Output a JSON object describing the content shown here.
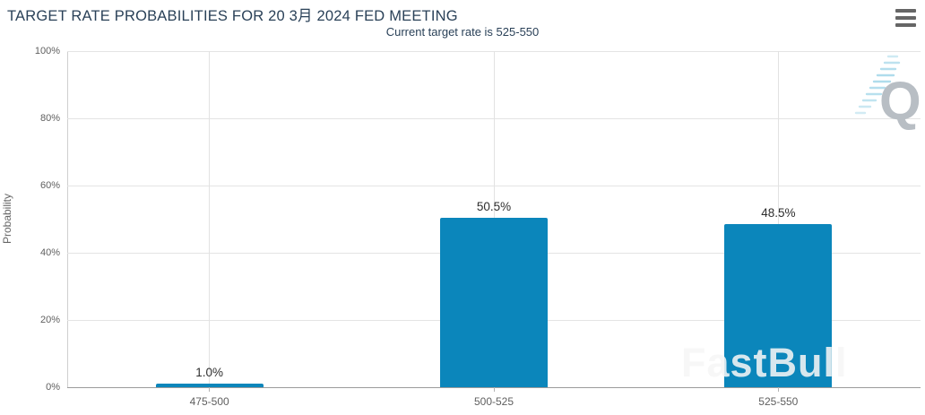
{
  "header": {
    "title": "TARGET RATE PROBABILITIES FOR 20 3月 2024 FED MEETING",
    "subtitle": "Current target rate is 525-550"
  },
  "menu": {
    "icon": "hamburger-menu-icon"
  },
  "chart_data": {
    "type": "bar",
    "title": "TARGET RATE PROBABILITIES FOR 20 3月 2024 FED MEETING",
    "subtitle": "Current target rate is 525-550",
    "categories": [
      "475-500",
      "500-525",
      "525-550"
    ],
    "values": [
      1.0,
      50.5,
      48.5
    ],
    "data_labels": [
      "1.0%",
      "50.5%",
      "48.5%"
    ],
    "xlabel": "",
    "ylabel": "Probability",
    "ylim": [
      0,
      100
    ],
    "y_ticks": [
      0,
      20,
      40,
      60,
      80,
      100
    ],
    "y_tick_labels": [
      "0%",
      "20%",
      "40%",
      "60%",
      "80%",
      "100%"
    ],
    "grid": true,
    "legend": false,
    "bar_color": "#0b86bb"
  },
  "watermarks": {
    "fastbull_text": "FastBull",
    "q_letter": "Q"
  },
  "colors": {
    "title_text": "#2a4158",
    "axis_label": "#606060",
    "grid_line": "#e4e4e4",
    "axis_line": "#9b9b9b",
    "bar_fill": "#0b86bb",
    "data_label": "#2d2d2d",
    "menu_icon": "#666666",
    "q_gray": "#b8bec4",
    "q_dash_blue": "#a7d9ea"
  }
}
